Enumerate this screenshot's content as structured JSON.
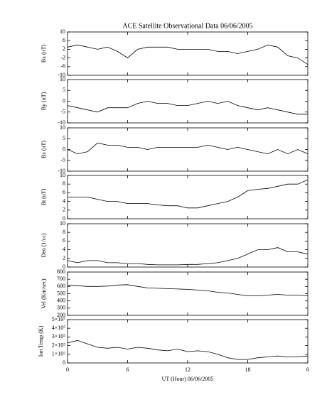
{
  "chart_data": [
    {
      "type": "line",
      "title": "ACE Satellite Observational Data   06/06/2005",
      "y_label": "Bx (nT)",
      "color": "#000000",
      "x": [
        0,
        1,
        2,
        3,
        4,
        5,
        6,
        7,
        8,
        9,
        10,
        11,
        12,
        13,
        14,
        15,
        16,
        17,
        18,
        19,
        20,
        21,
        22,
        23,
        24
      ],
      "values": [
        3,
        4,
        3,
        2,
        3,
        1,
        -2,
        2,
        3,
        3,
        3,
        2,
        2,
        2,
        2,
        1,
        1,
        0,
        1,
        2,
        4,
        3,
        -1,
        -2,
        -5
      ],
      "ylim": [
        -10,
        10
      ],
      "yticks": [
        -10,
        -6,
        -2,
        2,
        6,
        10
      ]
    },
    {
      "type": "line",
      "y_label": "By (nT)",
      "color": "#000000",
      "x": [
        0,
        1,
        2,
        3,
        4,
        5,
        6,
        7,
        8,
        9,
        10,
        11,
        12,
        13,
        14,
        15,
        16,
        17,
        18,
        19,
        20,
        21,
        22,
        23,
        24
      ],
      "values": [
        -2,
        -3,
        -4,
        -5,
        -3,
        -3,
        -3,
        -1,
        0,
        -1,
        -1,
        -2,
        -2,
        -1,
        0,
        -1,
        0,
        -2,
        -3,
        -4,
        -3,
        -4,
        -5,
        -6,
        -6
      ],
      "ylim": [
        -10,
        10
      ],
      "yticks": [
        -10,
        -5,
        0,
        5,
        10
      ]
    },
    {
      "type": "line",
      "y_label": "Bz (nT)",
      "color": "#000000",
      "x": [
        0,
        1,
        2,
        3,
        4,
        5,
        6,
        7,
        8,
        9,
        10,
        11,
        12,
        13,
        14,
        15,
        16,
        17,
        18,
        19,
        20,
        21,
        22,
        23,
        24
      ],
      "values": [
        0,
        -2,
        -1,
        3,
        2,
        2,
        1,
        1,
        0,
        1,
        1,
        1,
        1,
        1,
        2,
        1,
        0,
        1,
        0,
        -1,
        -2,
        0,
        -2,
        0,
        -2
      ],
      "ylim": [
        -10,
        10
      ],
      "yticks": [
        -10,
        -5,
        0,
        5,
        10
      ]
    },
    {
      "type": "line",
      "y_label": "Bt (nT)",
      "color": "#000000",
      "x": [
        0,
        1,
        2,
        3,
        4,
        5,
        6,
        7,
        8,
        9,
        10,
        11,
        12,
        13,
        14,
        15,
        16,
        17,
        18,
        19,
        20,
        21,
        22,
        23,
        24
      ],
      "values": [
        5,
        5,
        5,
        4.5,
        4,
        4,
        3.5,
        3.5,
        3.5,
        3.2,
        3,
        3,
        2.5,
        2.5,
        3,
        3.5,
        4,
        5,
        6.5,
        6.8,
        7,
        7.5,
        8,
        8,
        9
      ],
      "ylim": [
        0,
        10
      ],
      "yticks": [
        0,
        2,
        4,
        6,
        8,
        10
      ]
    },
    {
      "type": "line",
      "y_label": "Den (1/cc)",
      "color": "#000000",
      "x": [
        0,
        1,
        2,
        3,
        4,
        5,
        6,
        7,
        8,
        9,
        10,
        11,
        12,
        13,
        14,
        15,
        16,
        17,
        18,
        19,
        20,
        21,
        22,
        23,
        24
      ],
      "values": [
        1.5,
        1,
        1.5,
        1.5,
        1,
        1,
        0.8,
        0.8,
        0.6,
        0.5,
        0.5,
        0.5,
        0.6,
        0.6,
        0.8,
        1,
        1.5,
        2,
        3,
        4,
        4,
        4.5,
        3.5,
        3.5,
        3
      ],
      "ylim": [
        0,
        10
      ],
      "yticks": [
        0,
        2,
        4,
        6,
        8,
        10
      ]
    },
    {
      "type": "line",
      "y_label": "Vel (Km/sec)",
      "color": "#000000",
      "x": [
        0,
        1,
        2,
        3,
        4,
        5,
        6,
        7,
        8,
        9,
        10,
        11,
        12,
        13,
        14,
        15,
        16,
        17,
        18,
        19,
        20,
        21,
        22,
        23,
        24
      ],
      "values": [
        620,
        610,
        600,
        600,
        605,
        620,
        625,
        600,
        580,
        575,
        570,
        565,
        560,
        550,
        540,
        520,
        510,
        490,
        470,
        470,
        480,
        490,
        480,
        480,
        470
      ],
      "ylim": [
        200,
        800
      ],
      "yticks": [
        200,
        300,
        400,
        500,
        600,
        700,
        800
      ]
    },
    {
      "type": "line",
      "y_label": "Ion Temp (K)",
      "x_label": "UT (Hour)   06/06/2005",
      "color": "#000000",
      "x": [
        0,
        1,
        2,
        3,
        4,
        5,
        6,
        7,
        8,
        9,
        10,
        11,
        12,
        13,
        14,
        15,
        16,
        17,
        18,
        19,
        20,
        21,
        22,
        23,
        24
      ],
      "values": [
        230000,
        260000,
        220000,
        180000,
        170000,
        180000,
        160000,
        180000,
        170000,
        150000,
        140000,
        160000,
        130000,
        140000,
        130000,
        100000,
        60000,
        40000,
        40000,
        60000,
        70000,
        80000,
        70000,
        70000,
        80000
      ],
      "ylim": [
        0,
        500000
      ],
      "yticks": [
        0,
        {
          "value": 100000,
          "label": "1×10⁵"
        },
        {
          "value": 200000,
          "label": "2×10⁵"
        },
        {
          "value": 300000,
          "label": "3×10⁵"
        },
        {
          "value": 400000,
          "label": "4×10⁵"
        },
        {
          "value": 500000,
          "label": "5×10⁵"
        }
      ],
      "xlim": [
        0,
        24
      ],
      "xticks": [
        0,
        6,
        12,
        18,
        {
          "value": 24,
          "label": "0"
        }
      ]
    }
  ]
}
